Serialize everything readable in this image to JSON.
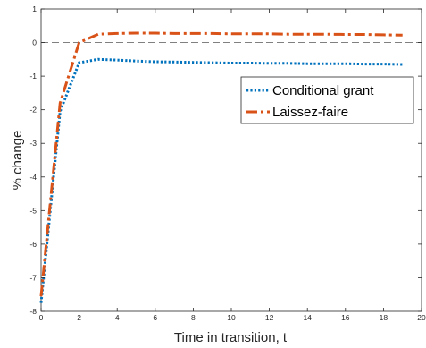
{
  "chart_data": {
    "type": "line",
    "title": "",
    "xlabel": "Time in transition, t",
    "ylabel": "% change",
    "xlim": [
      0,
      20
    ],
    "ylim": [
      -8,
      1
    ],
    "xticks": [
      0,
      2,
      4,
      6,
      8,
      10,
      12,
      14,
      16,
      18,
      20
    ],
    "yticks": [
      -8,
      -7,
      -6,
      -5,
      -4,
      -3,
      -2,
      -1,
      0,
      1
    ],
    "grid": false,
    "legend_position": "upper right",
    "reference_line": {
      "y": 0,
      "style": "dashed",
      "color": "#808080"
    },
    "series": [
      {
        "name": "Conditional grant",
        "color": "#0072BD",
        "line_style": "dotted",
        "x": [
          0,
          1,
          2,
          3,
          4,
          5,
          6,
          7,
          8,
          9,
          10,
          11,
          12,
          13,
          14,
          15,
          16,
          17,
          18,
          19
        ],
        "y": [
          -7.75,
          -2.05,
          -0.6,
          -0.5,
          -0.52,
          -0.55,
          -0.57,
          -0.58,
          -0.59,
          -0.6,
          -0.61,
          -0.61,
          -0.62,
          -0.62,
          -0.63,
          -0.63,
          -0.63,
          -0.64,
          -0.64,
          -0.65
        ]
      },
      {
        "name": "Laissez-faire",
        "color": "#D95319",
        "line_style": "dashdot",
        "x": [
          0,
          1,
          2,
          3,
          4,
          5,
          6,
          7,
          8,
          9,
          10,
          11,
          12,
          13,
          14,
          15,
          16,
          17,
          18,
          19
        ],
        "y": [
          -7.55,
          -1.8,
          0.0,
          0.25,
          0.27,
          0.28,
          0.28,
          0.27,
          0.27,
          0.27,
          0.26,
          0.26,
          0.26,
          0.25,
          0.25,
          0.25,
          0.24,
          0.24,
          0.23,
          0.22
        ]
      }
    ]
  }
}
